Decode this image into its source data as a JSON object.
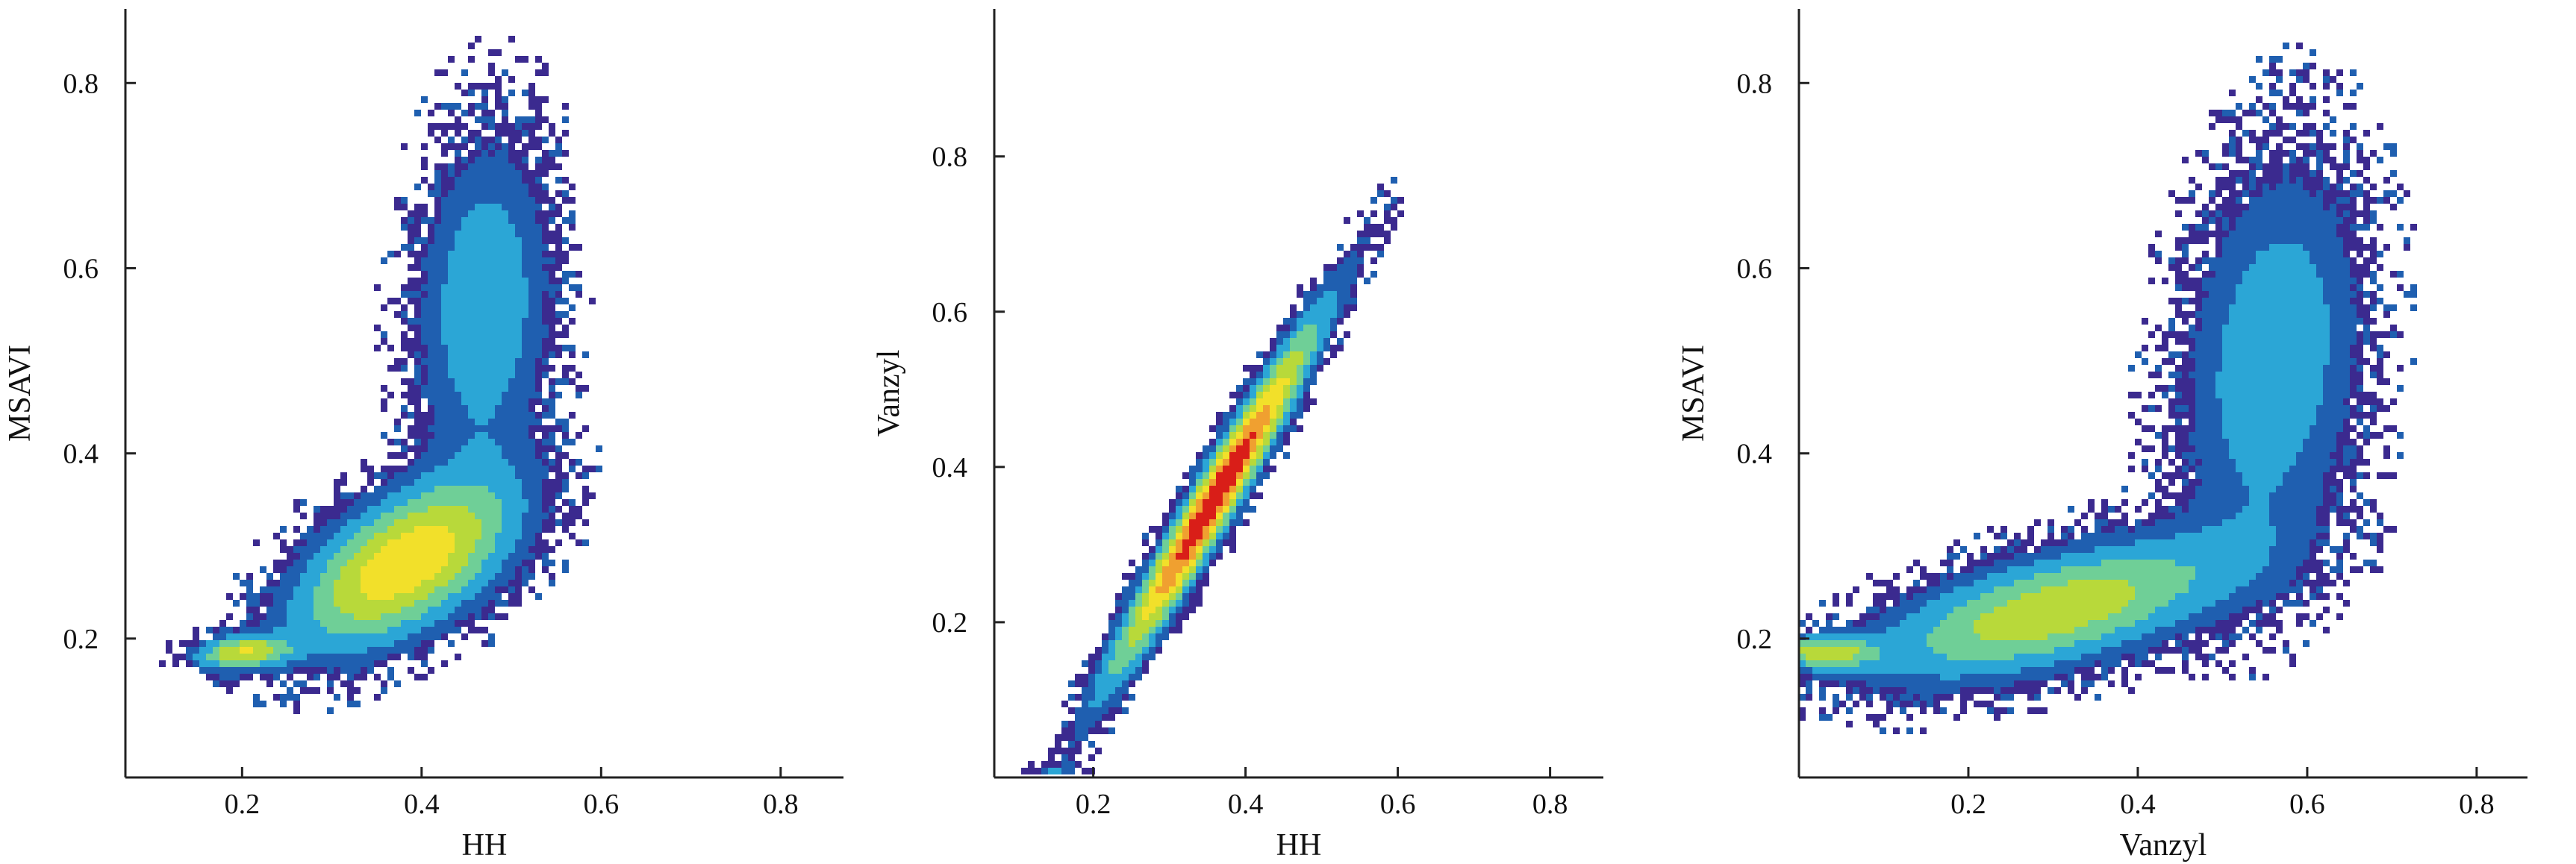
{
  "chart_data": [
    {
      "type": "heatmap",
      "title": "",
      "xlabel": "HH",
      "ylabel": "MSAVI",
      "xlim": [
        0.07,
        0.87
      ],
      "ylim": [
        0.05,
        0.88
      ],
      "xticks": [
        {
          "v": 0.2,
          "label": "0.2"
        },
        {
          "v": 0.4,
          "label": "0.4"
        },
        {
          "v": 0.6,
          "label": "0.6"
        },
        {
          "v": 0.8,
          "label": "0.8"
        }
      ],
      "yticks": [
        {
          "v": 0.2,
          "label": "0.2"
        },
        {
          "v": 0.4,
          "label": "0.4"
        },
        {
          "v": 0.6,
          "label": "0.6"
        },
        {
          "v": 0.8,
          "label": "0.8"
        }
      ],
      "colormap": [
        "#3b2a8f",
        "#1f5fb0",
        "#2ba6d6",
        "#6fcf97",
        "#b8d93a",
        "#f2e02a",
        "#f0a030",
        "#d91e18"
      ],
      "clusters": [
        {
          "x": 0.38,
          "y": 0.28,
          "sx": 0.08,
          "sy": 0.06,
          "rho": 0.55,
          "w": 0.7
        },
        {
          "x": 0.2,
          "y": 0.185,
          "sx": 0.035,
          "sy": 0.012,
          "rho": 0.2,
          "w": 0.55
        },
        {
          "x": 0.47,
          "y": 0.56,
          "sx": 0.05,
          "sy": 0.12,
          "rho": 0.1,
          "w": 0.3
        }
      ]
    },
    {
      "type": "heatmap",
      "title": "",
      "xlabel": "HH",
      "ylabel": "Vanzyl",
      "xlim": [
        0.07,
        0.87
      ],
      "ylim": [
        0.0,
        0.99
      ],
      "xticks": [
        {
          "v": 0.2,
          "label": "0.2"
        },
        {
          "v": 0.4,
          "label": "0.4"
        },
        {
          "v": 0.6,
          "label": "0.6"
        },
        {
          "v": 0.8,
          "label": "0.8"
        }
      ],
      "yticks": [
        {
          "v": 0.2,
          "label": "0.2"
        },
        {
          "v": 0.4,
          "label": "0.4"
        },
        {
          "v": 0.6,
          "label": "0.6"
        },
        {
          "v": 0.8,
          "label": "0.8"
        }
      ],
      "colormap": [
        "#3b2a8f",
        "#1f5fb0",
        "#2ba6d6",
        "#6fcf97",
        "#b8d93a",
        "#f2e02a",
        "#f0a030",
        "#d91e18"
      ],
      "clusters": [
        {
          "x": 0.36,
          "y": 0.36,
          "sx": 0.09,
          "sy": 0.15,
          "rho": 0.97,
          "w": 1.0
        },
        {
          "x": 0.15,
          "y": 0.0,
          "sx": 0.02,
          "sy": 0.01,
          "rho": 0.0,
          "w": 0.2
        }
      ]
    },
    {
      "type": "heatmap",
      "title": "",
      "xlabel": "Vanzyl",
      "ylabel": "MSAVI",
      "xlim": [
        0.0,
        0.86
      ],
      "ylim": [
        0.05,
        0.88
      ],
      "xticks": [
        {
          "v": 0.2,
          "label": "0.2"
        },
        {
          "v": 0.4,
          "label": "0.4"
        },
        {
          "v": 0.6,
          "label": "0.6"
        },
        {
          "v": 0.8,
          "label": "0.8"
        }
      ],
      "yticks": [
        {
          "v": 0.2,
          "label": "0.2"
        },
        {
          "v": 0.4,
          "label": "0.4"
        },
        {
          "v": 0.6,
          "label": "0.6"
        },
        {
          "v": 0.8,
          "label": "0.8"
        }
      ],
      "colormap": [
        "#3b2a8f",
        "#1f5fb0",
        "#2ba6d6",
        "#6fcf97",
        "#b8d93a",
        "#f2e02a",
        "#f0a030",
        "#d91e18"
      ],
      "clusters": [
        {
          "x": 0.03,
          "y": 0.185,
          "sx": 0.04,
          "sy": 0.012,
          "rho": 0.0,
          "w": 0.5
        },
        {
          "x": 0.3,
          "y": 0.23,
          "sx": 0.14,
          "sy": 0.05,
          "rho": 0.6,
          "w": 0.55
        },
        {
          "x": 0.56,
          "y": 0.5,
          "sx": 0.07,
          "sy": 0.14,
          "rho": 0.2,
          "w": 0.3
        }
      ]
    }
  ]
}
